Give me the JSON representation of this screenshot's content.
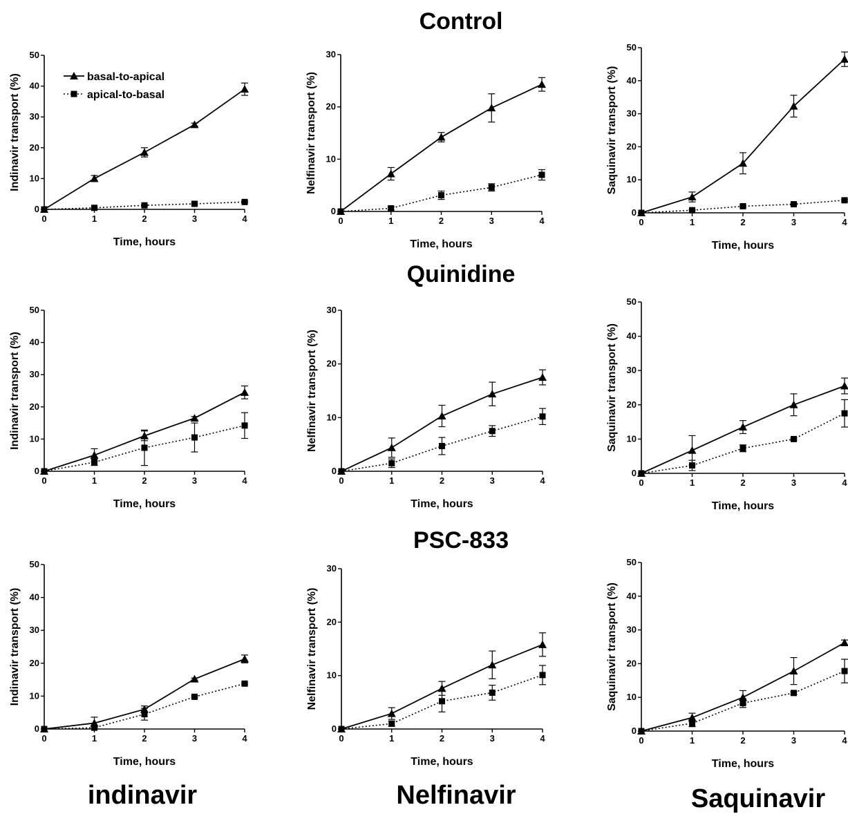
{
  "row_titles": [
    "Control",
    "Quinidine",
    "PSC-833"
  ],
  "column_titles": [
    "indinavir",
    "Nelfinavir",
    "Saquinavir"
  ],
  "legend": {
    "ba": "basal-to-apical",
    "ab": "apical-to-basal"
  },
  "chart_data": [
    {
      "type": "line",
      "title": "Control",
      "ylabel": "Indinavir transport (%)",
      "xlabel": "Time, hours",
      "x": [
        0,
        1,
        2,
        3,
        4
      ],
      "xticks": [
        0,
        1,
        2,
        3,
        4
      ],
      "ylim": [
        0,
        50
      ],
      "yticks": [
        0,
        10,
        20,
        30,
        40,
        50
      ],
      "series": [
        {
          "name": "basal-to-apical",
          "values": [
            0,
            10,
            18.5,
            27.5,
            39
          ],
          "errors": [
            0,
            1,
            1.5,
            0.5,
            2
          ]
        },
        {
          "name": "apical-to-basal",
          "values": [
            0,
            0.5,
            1.3,
            1.8,
            2.4
          ],
          "errors": [
            0,
            0.2,
            0.2,
            0.3,
            0.3
          ]
        }
      ]
    },
    {
      "type": "line",
      "title": "Control",
      "ylabel": "Nelfinavir transport (%)",
      "xlabel": "Time, hours",
      "x": [
        0,
        1,
        2,
        3,
        4
      ],
      "xticks": [
        0,
        1,
        2,
        3,
        4
      ],
      "ylim": [
        0,
        30
      ],
      "yticks": [
        0,
        10,
        20,
        30
      ],
      "series": [
        {
          "name": "basal-to-apical",
          "values": [
            0,
            7.2,
            14.2,
            19.8,
            24.3
          ],
          "errors": [
            0,
            1.2,
            0.9,
            2.7,
            1.3
          ]
        },
        {
          "name": "apical-to-basal",
          "values": [
            0,
            0.6,
            3.1,
            4.6,
            7
          ],
          "errors": [
            0,
            0.3,
            0.8,
            0.7,
            1
          ]
        }
      ]
    },
    {
      "type": "line",
      "title": "Control",
      "ylabel": "Saquinavir transport (%)",
      "xlabel": "Time, hours",
      "x": [
        0,
        1,
        2,
        3,
        4
      ],
      "xticks": [
        0,
        1,
        2,
        3,
        4
      ],
      "ylim": [
        0,
        50
      ],
      "yticks": [
        0,
        10,
        20,
        30,
        40,
        50
      ],
      "series": [
        {
          "name": "basal-to-apical",
          "values": [
            0,
            4.8,
            15,
            32.3,
            46.5
          ],
          "errors": [
            0,
            1.5,
            3.2,
            3.3,
            2.2
          ]
        },
        {
          "name": "apical-to-basal",
          "values": [
            0,
            0.8,
            2,
            2.6,
            3.8
          ],
          "errors": [
            0,
            0.2,
            0.3,
            0.3,
            0.3
          ]
        }
      ]
    },
    {
      "type": "line",
      "title": "Quinidine",
      "ylabel": "Indinavir transport (%)",
      "xlabel": "Time, hours",
      "x": [
        0,
        1,
        2,
        3,
        4
      ],
      "xticks": [
        0,
        1,
        2,
        3,
        4
      ],
      "ylim": [
        0,
        50
      ],
      "yticks": [
        0,
        10,
        20,
        30,
        40,
        50
      ],
      "series": [
        {
          "name": "basal-to-apical",
          "values": [
            0,
            5,
            11,
            16.5,
            24.5
          ],
          "errors": [
            0,
            2,
            1.5,
            0.5,
            2
          ]
        },
        {
          "name": "apical-to-basal",
          "values": [
            0,
            2.8,
            7.3,
            10.5,
            14.2
          ],
          "errors": [
            0,
            1,
            5.5,
            4.5,
            4
          ]
        }
      ]
    },
    {
      "type": "line",
      "title": "Quinidine",
      "ylabel": "Nelfinavir transport (%)",
      "xlabel": "Time, hours",
      "x": [
        0,
        1,
        2,
        3,
        4
      ],
      "xticks": [
        0,
        1,
        2,
        3,
        4
      ],
      "ylim": [
        0,
        30
      ],
      "yticks": [
        0,
        10,
        20,
        30
      ],
      "series": [
        {
          "name": "basal-to-apical",
          "values": [
            0,
            4.4,
            10.3,
            14.4,
            17.5
          ],
          "errors": [
            0,
            1.8,
            2,
            2.2,
            1.4
          ]
        },
        {
          "name": "apical-to-basal",
          "values": [
            0,
            1.5,
            4.7,
            7.5,
            10.2
          ],
          "errors": [
            0,
            0.8,
            1.6,
            1,
            1.5
          ]
        }
      ]
    },
    {
      "type": "line",
      "title": "Quinidine",
      "ylabel": "Saquinavir transport (%)",
      "xlabel": "Time, hours",
      "x": [
        0,
        1,
        2,
        3,
        4
      ],
      "xticks": [
        0,
        1,
        2,
        3,
        4
      ],
      "ylim": [
        0,
        50
      ],
      "yticks": [
        0,
        10,
        20,
        30,
        40,
        50
      ],
      "series": [
        {
          "name": "basal-to-apical",
          "values": [
            0,
            6.7,
            13.5,
            20,
            25.5
          ],
          "errors": [
            0,
            4.3,
            1.9,
            3.2,
            2.3
          ]
        },
        {
          "name": "apical-to-basal",
          "values": [
            0,
            2.3,
            7.3,
            10,
            17.5
          ],
          "errors": [
            0,
            1.5,
            1,
            0.3,
            4
          ]
        }
      ]
    },
    {
      "type": "line",
      "title": "PSC-833",
      "ylabel": "Indinavir transport (%)",
      "xlabel": "Time, hours",
      "x": [
        0,
        1,
        2,
        3,
        4
      ],
      "xticks": [
        0,
        1,
        2,
        3,
        4
      ],
      "ylim": [
        0,
        50
      ],
      "yticks": [
        0,
        10,
        20,
        30,
        40,
        50
      ],
      "series": [
        {
          "name": "basal-to-apical",
          "values": [
            0,
            1.8,
            6,
            15.2,
            21.3
          ],
          "errors": [
            0,
            1.8,
            1,
            0.3,
            1.2
          ]
        },
        {
          "name": "apical-to-basal",
          "values": [
            0,
            0.4,
            4.5,
            9.8,
            13.8
          ],
          "errors": [
            0,
            0.2,
            1.8,
            0.3,
            0.3
          ]
        }
      ]
    },
    {
      "type": "line",
      "title": "PSC-833",
      "ylabel": "Nelfinavir transport (%)",
      "xlabel": "Time, hours",
      "x": [
        0,
        1,
        2,
        3,
        4
      ],
      "xticks": [
        0,
        1,
        2,
        3,
        4
      ],
      "ylim": [
        0,
        30
      ],
      "yticks": [
        0,
        10,
        20,
        30
      ],
      "series": [
        {
          "name": "basal-to-apical",
          "values": [
            0,
            2.9,
            7.6,
            12,
            15.8
          ],
          "errors": [
            0,
            1.1,
            1.3,
            2.6,
            2.2
          ]
        },
        {
          "name": "apical-to-basal",
          "values": [
            0,
            1,
            5.2,
            6.8,
            10.1
          ],
          "errors": [
            0,
            0.5,
            2,
            1.4,
            1.8
          ]
        }
      ]
    },
    {
      "type": "line",
      "title": "PSC-833",
      "ylabel": "Saquinavir transport (%)",
      "xlabel": "Time, hours",
      "x": [
        0,
        1,
        2,
        3,
        4
      ],
      "xticks": [
        0,
        1,
        2,
        3,
        4
      ],
      "ylim": [
        0,
        50
      ],
      "yticks": [
        0,
        10,
        20,
        30,
        40,
        50
      ],
      "series": [
        {
          "name": "basal-to-apical",
          "values": [
            0,
            4,
            10,
            17.8,
            26.2
          ],
          "errors": [
            0,
            1.3,
            2,
            4,
            0.8
          ]
        },
        {
          "name": "apical-to-basal",
          "values": [
            0,
            2.3,
            8.3,
            11.3,
            17.8
          ],
          "errors": [
            0,
            1,
            1.3,
            0.4,
            3.5
          ]
        }
      ]
    }
  ]
}
